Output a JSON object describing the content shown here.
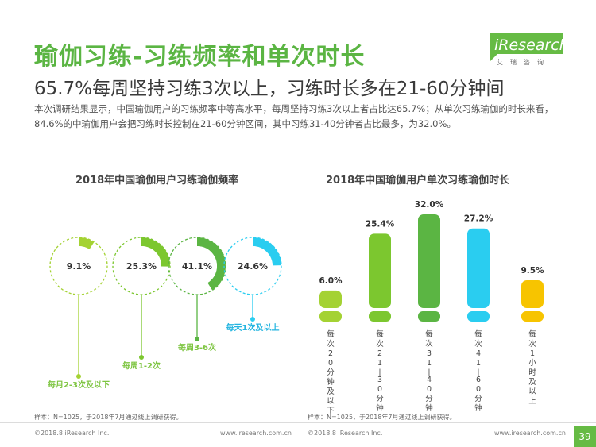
{
  "header": {
    "title": "瑜伽习练-习练频率和单次时长",
    "subtitle": "65.7%每周坚持习练3次以上，习练时长多在21-60分钟间",
    "description": "本次调研结果显示，中国瑜伽用户的习练频率中等高水平，每周坚持习练3次以上者占比达65.7%；从单次习练瑜伽的时长来看，84.6%的中瑜伽用户会把习练时长控制在21-60分钟区间，其中习练31-40分钟者占比最多，为32.0%。"
  },
  "logo": {
    "text": "iResearch",
    "cn": "艾瑞咨询"
  },
  "colors": {
    "green_dark": "#5BB543",
    "green_mid": "#7CC72F",
    "green_light": "#A4D233",
    "cyan": "#2ACDF0",
    "yellow": "#F7C400",
    "label_green": "#7EC542",
    "label_cyan": "#25B5E0"
  },
  "chart_data": [
    {
      "type": "pie",
      "title": "2018年中国瑜伽用户习练瑜伽频率",
      "categories": [
        "每月2-3次及以下",
        "每周1-2次",
        "每周3-6次",
        "每天1次及以上"
      ],
      "values": [
        9.1,
        25.3,
        41.1,
        24.6
      ],
      "value_labels": [
        "9.1%",
        "25.3%",
        "41.1%",
        "24.6%"
      ],
      "note": "样本：N=1025，于2018年7月通过线上调研获得。"
    },
    {
      "type": "bar",
      "title": "2018年中国瑜伽用户单次习练瑜伽时长",
      "categories": [
        "每次20分钟及以下",
        "每次21-30分钟",
        "每次31-40分钟",
        "每次41-60分钟",
        "每次1小时及以上"
      ],
      "values": [
        6.0,
        25.4,
        32.0,
        27.2,
        9.5
      ],
      "value_labels": [
        "6.0%",
        "25.4%",
        "32.0%",
        "27.2%",
        "9.5%"
      ],
      "note": "样本：N=1025，于2018年7月通过线上调研获得。"
    }
  ],
  "footer": {
    "copyright_left": "©2018.8 iResearch Inc.",
    "url_left": "www.iresearch.com.cn",
    "copyright_right": "©2018.8 iResearch Inc.",
    "url_right": "www.iresearch.com.cn",
    "page": "39"
  }
}
